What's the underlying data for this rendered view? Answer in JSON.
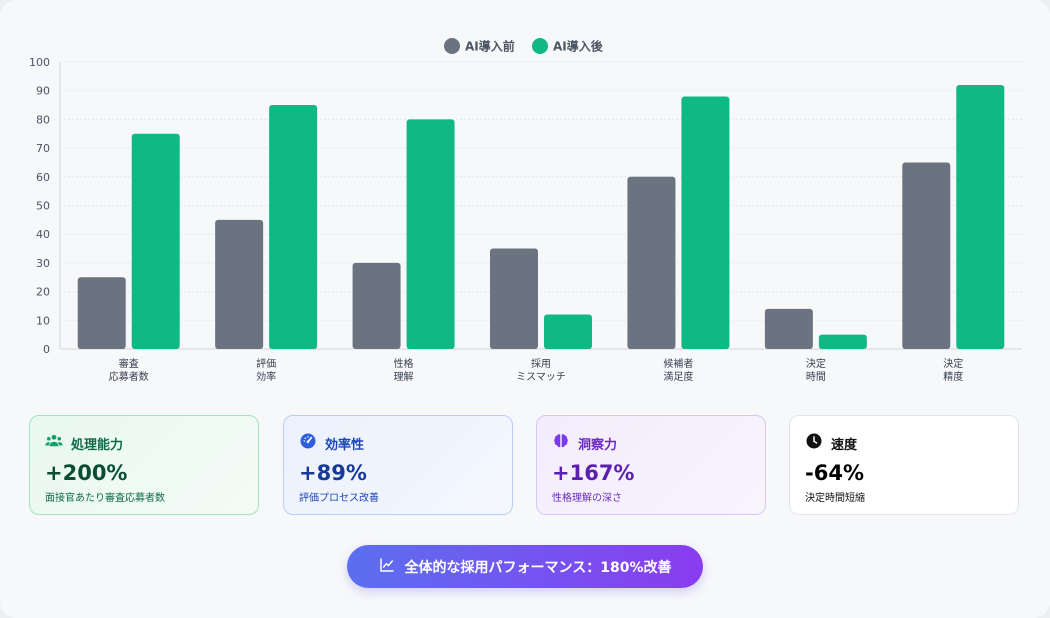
{
  "chart_data": {
    "type": "bar",
    "categories": [
      [
        "審査",
        "応募者数"
      ],
      [
        "評価",
        "効率"
      ],
      [
        "性格",
        "理解"
      ],
      [
        "採用",
        "ミスマッチ"
      ],
      [
        "候補者",
        "満足度"
      ],
      [
        "決定",
        "時間"
      ],
      [
        "決定",
        "精度"
      ]
    ],
    "series": [
      {
        "name": "AI導入前",
        "color": "#6b7280",
        "values": [
          25,
          45,
          30,
          35,
          60,
          14,
          65
        ]
      },
      {
        "name": "AI導入後",
        "color": "#10b981",
        "values": [
          75,
          85,
          80,
          12,
          88,
          5,
          92
        ]
      }
    ],
    "ylim": [
      0,
      100
    ],
    "yticks": [
      0,
      10,
      20,
      30,
      40,
      50,
      60,
      70,
      80,
      90,
      100
    ],
    "grid": true,
    "legend": "top-center"
  },
  "stats": [
    {
      "icon": "users-icon",
      "title": "処理能力",
      "value": "+200%",
      "sub": "面接官あたり審査応募者数"
    },
    {
      "icon": "gauge-icon",
      "title": "効率性",
      "value": "+89%",
      "sub": "評価プロセス改善"
    },
    {
      "icon": "brain-icon",
      "title": "洞察力",
      "value": "+167%",
      "sub": "性格理解の深さ"
    },
    {
      "icon": "clock-icon",
      "title": "速度",
      "value": "-64%",
      "sub": "決定時間短縮"
    }
  ],
  "banner": {
    "icon": "line-chart-icon",
    "label": "全体的な採用パフォーマンス：180%改善"
  }
}
